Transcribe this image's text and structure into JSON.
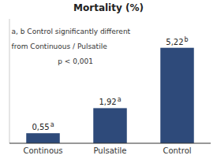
{
  "chart_data": {
    "type": "bar",
    "title": "Mortality (%)",
    "categories": [
      "Continous",
      "Pulsatile",
      "Control"
    ],
    "values": [
      0.55,
      1.92,
      5.22
    ],
    "value_labels": [
      "0,55",
      "1,92",
      "5,22"
    ],
    "value_label_superscripts": [
      "a",
      "a",
      "b"
    ],
    "annotations": [
      "a, b Control significantly different",
      "from Continuous / Pulsatile",
      "p < 0,001"
    ],
    "color": "#2E4A7A",
    "ylim": [
      0,
      6.8
    ],
    "data_labels": true,
    "tick_labels": "x",
    "grid": false
  }
}
